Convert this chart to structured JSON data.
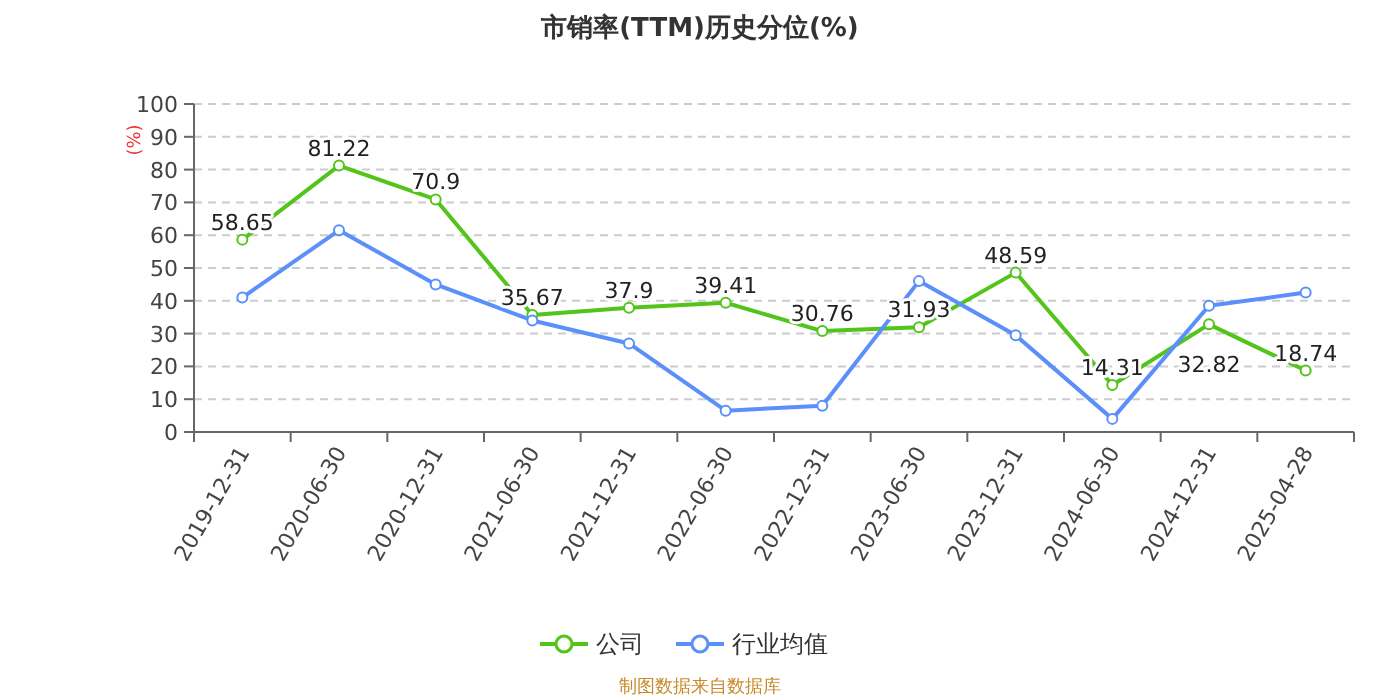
{
  "chart_data": {
    "type": "line",
    "title": "市销率(TTM)历史分位(%)",
    "ylabel": "(%)",
    "categories": [
      "2019-12-31",
      "2020-06-30",
      "2020-12-31",
      "2021-06-30",
      "2021-12-31",
      "2022-06-30",
      "2022-12-31",
      "2023-06-30",
      "2023-12-31",
      "2024-06-30",
      "2024-12-31",
      "2025-04-28"
    ],
    "series": [
      {
        "name": "公司",
        "color": "#52c41a",
        "values": [
          58.65,
          81.22,
          70.9,
          35.67,
          37.9,
          39.41,
          30.76,
          31.93,
          48.59,
          14.31,
          32.82,
          18.74
        ],
        "value_labels": [
          "58.65",
          "81.22",
          "70.9",
          "35.67",
          "37.9",
          "39.41",
          "30.76",
          "31.93",
          "48.59",
          "14.31",
          "32.82",
          "18.74"
        ]
      },
      {
        "name": "行业均值",
        "color": "#5b8ff9",
        "values": [
          41,
          61.5,
          45,
          34,
          27,
          6.5,
          8,
          46,
          29.5,
          4,
          38.5,
          42.5
        ]
      }
    ],
    "ylim": [
      0,
      100
    ],
    "yticks": [
      0,
      10,
      20,
      30,
      40,
      50,
      60,
      70,
      80,
      90,
      100
    ],
    "grid": "y",
    "legend": "bottom",
    "marker": "circle",
    "line_style": "solid",
    "annotations": [
      "制图数据来自数据库"
    ]
  }
}
